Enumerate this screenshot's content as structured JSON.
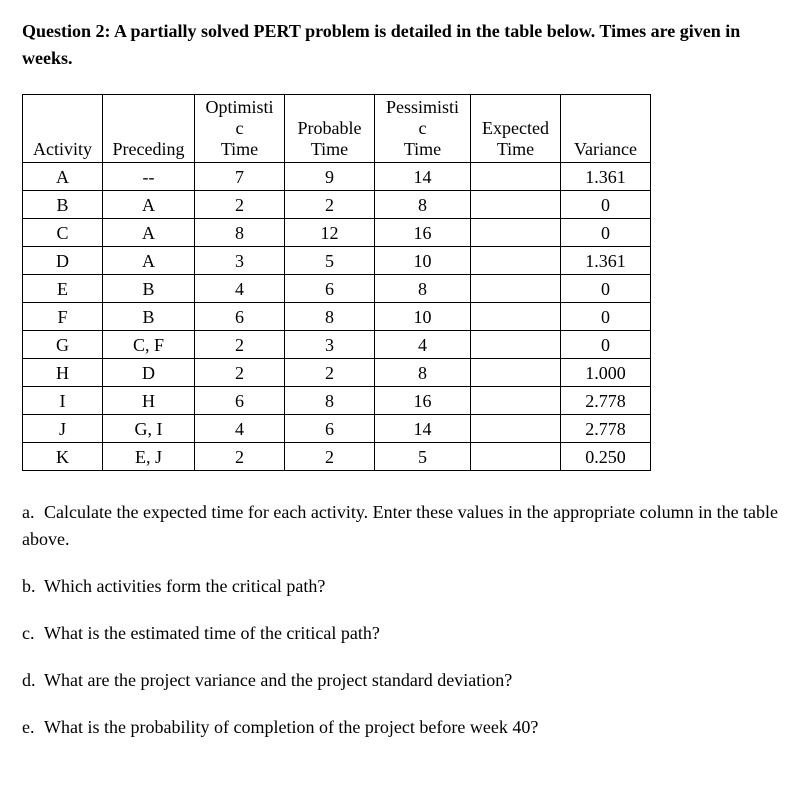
{
  "question_title": "Question 2: A partially solved PERT problem is detailed in the table below. Times are given in weeks.",
  "table": {
    "headers": {
      "activity": "Activity",
      "preceding": "Preceding",
      "optimistic_line1": "Optimisti",
      "optimistic_line2": "c",
      "optimistic_line3": "Time",
      "probable_line1": "Probable",
      "probable_line2": "Time",
      "pessimistic_line1": "Pessimisti",
      "pessimistic_line2": "c",
      "pessimistic_line3": "Time",
      "expected_line1": "Expected",
      "expected_line2": "Time",
      "variance": "Variance"
    },
    "rows": [
      {
        "activity": "A",
        "preceding": "--",
        "opt": "7",
        "prob": "9",
        "pess": "14",
        "exp": "",
        "var": "1.361"
      },
      {
        "activity": "B",
        "preceding": "A",
        "opt": "2",
        "prob": "2",
        "pess": "8",
        "exp": "",
        "var": "0"
      },
      {
        "activity": "C",
        "preceding": "A",
        "opt": "8",
        "prob": "12",
        "pess": "16",
        "exp": "",
        "var": "0"
      },
      {
        "activity": "D",
        "preceding": "A",
        "opt": "3",
        "prob": "5",
        "pess": "10",
        "exp": "",
        "var": "1.361"
      },
      {
        "activity": "E",
        "preceding": "B",
        "opt": "4",
        "prob": "6",
        "pess": "8",
        "exp": "",
        "var": "0"
      },
      {
        "activity": "F",
        "preceding": "B",
        "opt": "6",
        "prob": "8",
        "pess": "10",
        "exp": "",
        "var": "0"
      },
      {
        "activity": "G",
        "preceding": "C, F",
        "opt": "2",
        "prob": "3",
        "pess": "4",
        "exp": "",
        "var": "0"
      },
      {
        "activity": "H",
        "preceding": "D",
        "opt": "2",
        "prob": "2",
        "pess": "8",
        "exp": "",
        "var": "1.000"
      },
      {
        "activity": "I",
        "preceding": "H",
        "opt": "6",
        "prob": "8",
        "pess": "16",
        "exp": "",
        "var": "2.778"
      },
      {
        "activity": "J",
        "preceding": "G, I",
        "opt": "4",
        "prob": "6",
        "pess": "14",
        "exp": "",
        "var": "2.778"
      },
      {
        "activity": "K",
        "preceding": "E, J",
        "opt": "2",
        "prob": "2",
        "pess": "5",
        "exp": "",
        "var": "0.250"
      }
    ]
  },
  "sub_questions": {
    "a": {
      "letter": "a.",
      "text": "Calculate the expected time for each activity. Enter these values in the appropriate column in the table above."
    },
    "b": {
      "letter": "b.",
      "text": "Which activities form the critical path?"
    },
    "c": {
      "letter": "c.",
      "text": "What is the estimated time of the critical path?"
    },
    "d": {
      "letter": "d.",
      "text": "What are the project variance and the project standard deviation?"
    },
    "e": {
      "letter": "e.",
      "text": "What is the probability of completion of the project before week 40?"
    }
  }
}
